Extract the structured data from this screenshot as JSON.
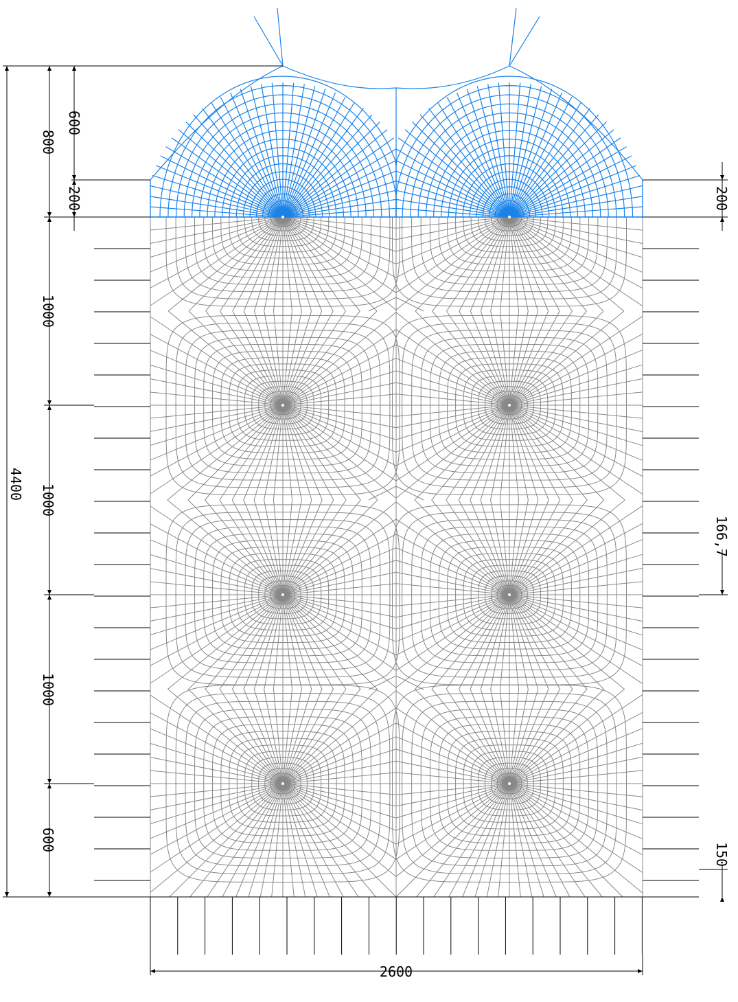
{
  "drawing": {
    "colors": {
      "background": "#ffffff",
      "dimension": "#000000",
      "upper_mesh": "#1a82e8",
      "lower_mesh": "#888888",
      "node": "#ffffff"
    },
    "dimensions": {
      "left_outer_total": "4400",
      "left_middle_top": "800",
      "left_middle_1": "1000",
      "left_middle_2": "1000",
      "left_middle_3": "1000",
      "left_middle_bottom": "600",
      "left_inner_top": "600",
      "left_inner_bottom": "200",
      "right_top_offset": "200",
      "right_spacing": "166,7",
      "right_bottom_offset": "150",
      "bottom_width": "2600"
    }
  }
}
